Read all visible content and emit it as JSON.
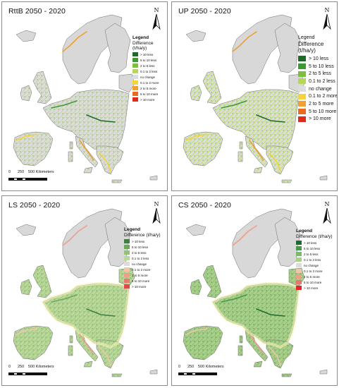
{
  "panels": [
    {
      "id": "rttb",
      "title": "RttB 2050 - 2020",
      "legend_size": "small",
      "colors": [
        "#1e6b28",
        "#3c9a34",
        "#7cbf3a",
        "#b6d85a",
        "#dcdcdc",
        "#f6d33c",
        "#f0a02e",
        "#ea6a22",
        "#e02a1c"
      ]
    },
    {
      "id": "up",
      "title": "UP 2050 - 2020",
      "legend_size": "large",
      "colors": [
        "#1e6b28",
        "#3c9a34",
        "#7cbf3a",
        "#b6d85a",
        "#dcdcdc",
        "#f6d33c",
        "#f0a02e",
        "#ea6a22",
        "#e02a1c"
      ]
    },
    {
      "id": "ls",
      "title": "LS 2050 - 2020",
      "legend_size": "small",
      "colors": [
        "#3f7f42",
        "#6aa85a",
        "#94c07a",
        "#bcd79a",
        "#dcdcdc",
        "#f2c6ae",
        "#ee9f8a",
        "#e67a72",
        "#e0484c"
      ]
    },
    {
      "id": "cs",
      "title": "CS 2050 - 2020",
      "legend_size": "small",
      "colors": [
        "#1f6b2d",
        "#46984a",
        "#7ab86a",
        "#a9cf8a",
        "#dcdcdc",
        "#f2c6ae",
        "#ee9f8a",
        "#e67a72",
        "#e0252c"
      ]
    }
  ],
  "legend": {
    "title": "Legend",
    "subtitle": "Difference (t/ha/y)",
    "items": [
      "> 10 less",
      "5 to 10 less",
      "2 to 5 less",
      "0.1 to 2 less",
      "no change",
      "0.1 to 2 more",
      "2 to 5 more",
      "5 to 10 more",
      "> 10 more"
    ]
  },
  "north_label": "N",
  "scale_bar": {
    "labels": [
      "0",
      "250",
      "500 Kilometers"
    ]
  }
}
